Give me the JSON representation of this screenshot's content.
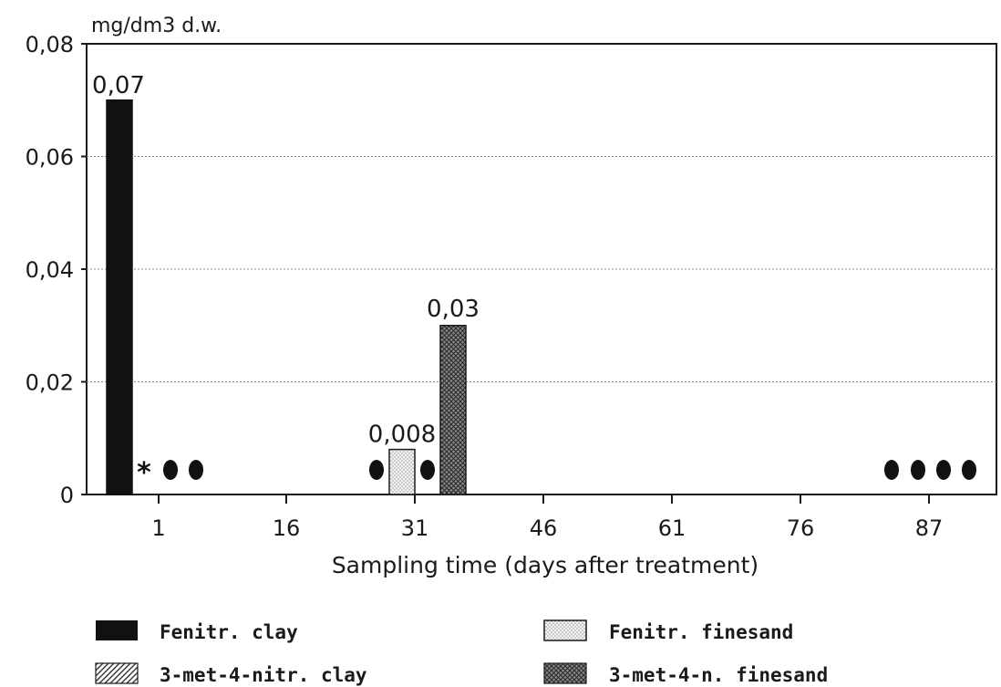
{
  "chart_data": {
    "type": "bar",
    "title": "",
    "ylabel": "mg/dm3 d.w.",
    "xlabel": "Sampling time (days after treatment)",
    "ylim": [
      0,
      0.08
    ],
    "yticks": [
      "0",
      "0,02",
      "0,04",
      "0,06",
      "0,08"
    ],
    "yticks_values": [
      0,
      0.02,
      0.04,
      0.06,
      0.08
    ],
    "xticks": [
      "1",
      "16",
      "31",
      "46",
      "61",
      "76",
      "87"
    ],
    "grid": true,
    "colors": {
      "fenitr_clay": "#111111",
      "fenitr_finesand": "#e6e6e6",
      "met_clay": "#9a9a9a",
      "met_finesand": "#6f6f6f"
    },
    "series": [
      {
        "name": "Fenitr. clay",
        "values": [
          {
            "x": 1,
            "y": 0.07,
            "label": "0,07"
          }
        ]
      },
      {
        "name": "Fenitr. finesand",
        "values": [
          {
            "x": 31,
            "y": 0.008,
            "label": "0,008"
          }
        ]
      },
      {
        "name": "3-met-4-nitr. clay",
        "values": []
      },
      {
        "name": "3-met-4-n. finesand",
        "values": [
          {
            "x": 31,
            "y": 0.03,
            "label": "0,03"
          }
        ]
      }
    ],
    "markers": {
      "asterisk": "*",
      "dot_groups": [
        {
          "x": 1,
          "count": 2
        },
        {
          "x": 31,
          "count": 2
        },
        {
          "x": 87,
          "count": 4
        }
      ]
    },
    "legend": [
      {
        "label": "Fenitr. clay",
        "pattern": "solid-black"
      },
      {
        "label": "Fenitr. finesand",
        "pattern": "light-dots"
      },
      {
        "label": "3-met-4-nitr. clay",
        "pattern": "diagonal-hatch"
      },
      {
        "label": "3-met-4-n. finesand",
        "pattern": "cross-hatch"
      }
    ],
    "legend_position": "bottom"
  }
}
